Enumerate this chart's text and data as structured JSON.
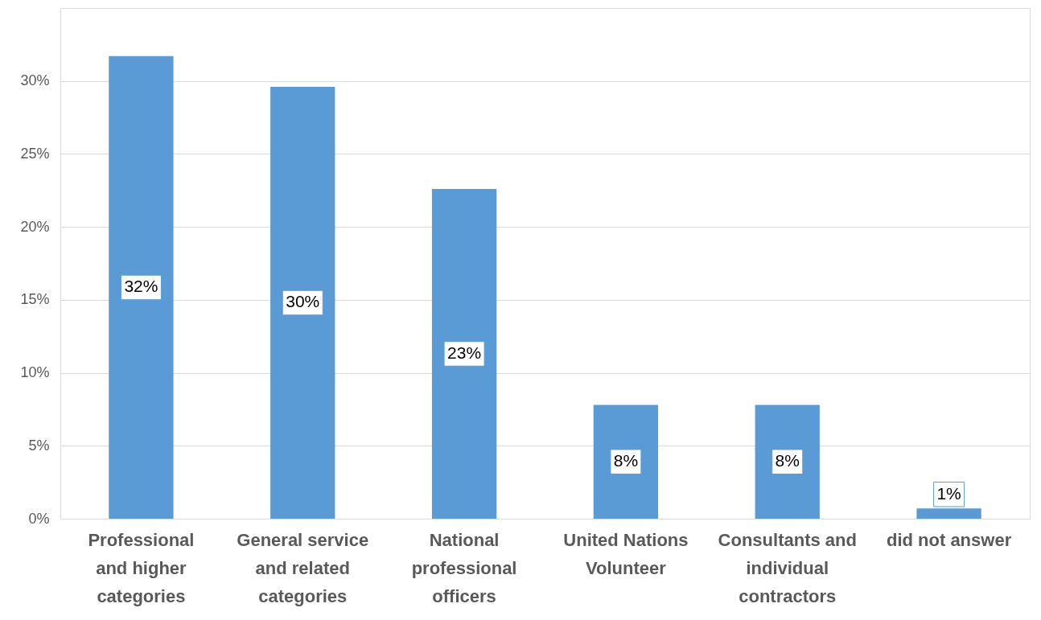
{
  "chart_data": {
    "type": "bar",
    "categories": [
      "Professional and higher categories",
      "General service and related categories",
      "National professional officers",
      "United Nations Volunteer",
      "Consultants and individual contractors",
      "did not answer"
    ],
    "values": [
      31.7,
      29.6,
      22.6,
      7.8,
      7.8,
      0.7
    ],
    "color": "#5b9bd5",
    "value_labels": [
      "32%",
      "30%",
      "23%",
      "8%",
      "8%",
      "1%"
    ],
    "ylim": [
      0,
      35
    ],
    "yticks": [
      {
        "value": 0,
        "label": "0%"
      },
      {
        "value": 5,
        "label": "5%"
      },
      {
        "value": 10,
        "label": "10%"
      },
      {
        "value": 15,
        "label": "15%"
      },
      {
        "value": 20,
        "label": "20%"
      },
      {
        "value": 25,
        "label": "25%"
      },
      {
        "value": 30,
        "label": "30%"
      }
    ],
    "grid": "y"
  }
}
